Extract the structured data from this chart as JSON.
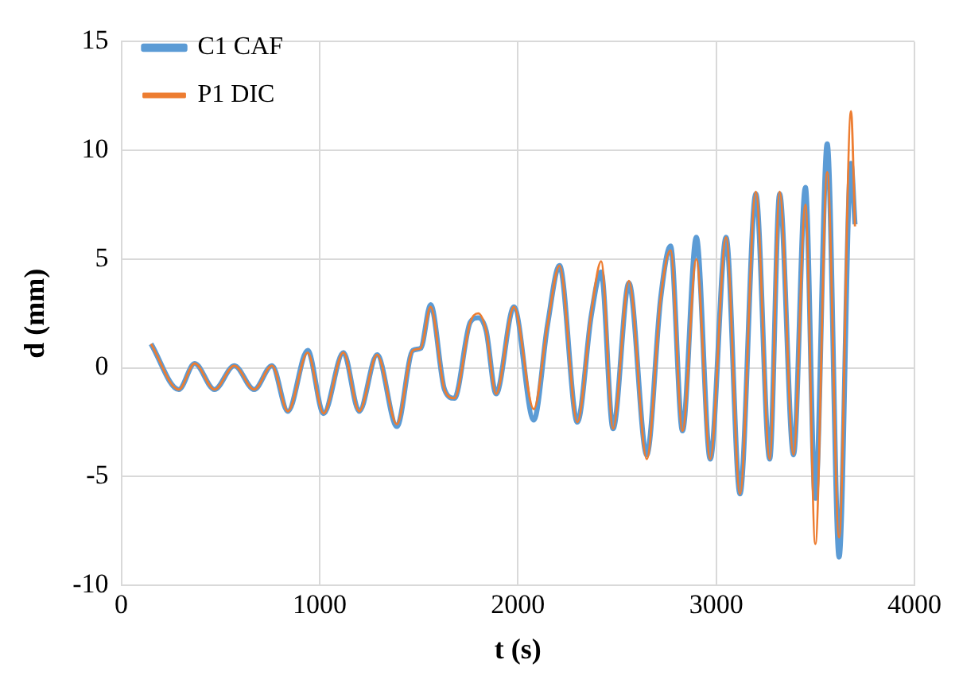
{
  "chart_data": {
    "type": "line",
    "xlabel": "t (s)",
    "ylabel": "d (mm)",
    "xlim": [
      0,
      4000
    ],
    "xticks": [
      0,
      1000,
      2000,
      3000,
      4000
    ],
    "ylim": [
      -10,
      15
    ],
    "yticks": [
      -10,
      -5,
      0,
      5,
      10,
      15
    ],
    "grid": true,
    "legend": "top left",
    "marker": "none",
    "line_style": "solid",
    "x": [
      150,
      290,
      370,
      470,
      570,
      670,
      760,
      840,
      940,
      1020,
      1120,
      1200,
      1290,
      1390,
      1470,
      1510,
      1560,
      1630,
      1680,
      1760,
      1800,
      1840,
      1890,
      1980,
      2080,
      2150,
      2210,
      2300,
      2370,
      2420,
      2480,
      2560,
      2650,
      2720,
      2770,
      2830,
      2900,
      2970,
      3050,
      3120,
      3200,
      3270,
      3320,
      3390,
      3450,
      3500,
      3560,
      3620,
      3680,
      3700
    ],
    "series": [
      {
        "name": "C1 CAF",
        "color": "#5b9bd5",
        "values": [
          1.1,
          -1.0,
          0.2,
          -1.0,
          0.1,
          -1.0,
          0.1,
          -2.0,
          0.8,
          -2.1,
          0.7,
          -2.0,
          0.6,
          -2.7,
          0.8,
          0.9,
          2.9,
          -1.0,
          -1.4,
          2.1,
          2.3,
          1.7,
          -1.2,
          2.8,
          -2.4,
          2.0,
          4.7,
          -2.5,
          2.4,
          4.4,
          -2.8,
          3.9,
          -4.0,
          3.2,
          5.6,
          -2.9,
          6.0,
          -4.2,
          6.0,
          -5.8,
          8.0,
          -4.2,
          8.0,
          -4.0,
          8.3,
          -6.0,
          10.3,
          -8.7,
          9.4,
          6.6
        ]
      },
      {
        "name": "P1 DIC",
        "color": "#ed7d31",
        "values": [
          1.1,
          -1.0,
          0.2,
          -1.0,
          0.1,
          -1.0,
          0.1,
          -2.0,
          0.7,
          -2.1,
          0.7,
          -2.0,
          0.6,
          -2.6,
          0.8,
          0.9,
          2.8,
          -1.0,
          -1.4,
          2.1,
          2.5,
          1.7,
          -1.2,
          2.8,
          -1.9,
          2.0,
          4.7,
          -2.5,
          2.5,
          4.9,
          -2.8,
          4.0,
          -4.2,
          3.2,
          5.4,
          -2.9,
          5.0,
          -4.2,
          6.0,
          -5.8,
          8.1,
          -4.2,
          8.1,
          -4.0,
          7.5,
          -8.1,
          9.0,
          -7.8,
          11.8,
          6.5
        ]
      }
    ]
  }
}
